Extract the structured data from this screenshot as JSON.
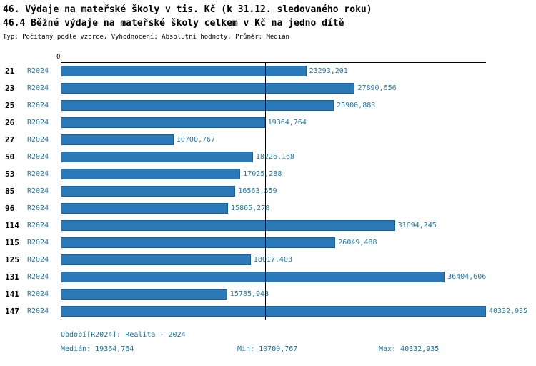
{
  "colors": {
    "bar": "#2a79b8",
    "bar_border": "#1c5f94",
    "label_blue": "#1f76b8",
    "footer": "#17719c",
    "axis": "#000000"
  },
  "header": {
    "title1": "46. Výdaje na mateřské školy v tis. Kč (k 31.12. sledovaného roku)",
    "title2": "46.4 Běžné výdaje na mateřské školy celkem v Kč na jedno dítě",
    "subtitle": "Typ: Počítaný podle vzorce, Vyhodnocení: Absolutní hodnoty, Průměr: Medián"
  },
  "chart_data": {
    "type": "bar",
    "orientation": "horizontal",
    "title": "46.4 Běžné výdaje na mateřské školy celkem v Kč na jedno dítě",
    "series_label": "R2024",
    "axis_origin_label": "0",
    "categories": [
      "21",
      "23",
      "25",
      "26",
      "27",
      "50",
      "53",
      "85",
      "96",
      "114",
      "115",
      "125",
      "131",
      "141",
      "147"
    ],
    "values": [
      23293.201,
      27890.656,
      25900.883,
      19364.764,
      10700.767,
      18226.168,
      17025.288,
      16563.559,
      15865.278,
      31694.245,
      26049.488,
      18017.403,
      36404.606,
      15785.948,
      40332.935
    ],
    "value_labels": [
      "23293,201",
      "27890,656",
      "25900,883",
      "19364,764",
      "10700,767",
      "18226,168",
      "17025,288",
      "16563,559",
      "15865,278",
      "31694,245",
      "26049,488",
      "18017,403",
      "36404,606",
      "15785,948",
      "40332,935"
    ],
    "xlim": [
      0,
      40332.935
    ],
    "min": 10700.767,
    "max": 40332.935,
    "median": 19364.764,
    "median_line_value": 19364.764,
    "grid": false,
    "legend_position": "none"
  },
  "footer": {
    "period": "Období[R2024]: Realita - 2024",
    "median": "Medián: 19364,764",
    "min": "Min: 10700,767",
    "max": "Max: 40332,935"
  }
}
